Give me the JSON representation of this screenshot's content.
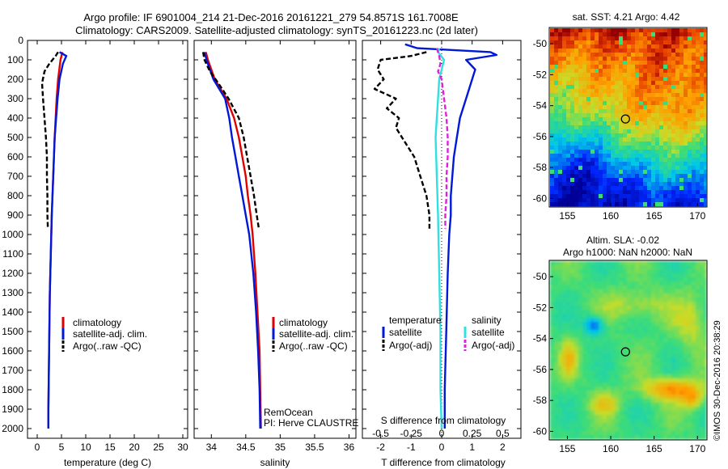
{
  "header": {
    "line1": "Argo profile: IF 6901004_214 21-Dec-2016 20161221_279 54.8571S 161.7008E",
    "line2": "Climatology: CARS2009. Satellite-adjusted climatology: synTS_20161223.nc (2d later)"
  },
  "colors": {
    "climatology": "#e00000",
    "satellite": "#0018d8",
    "argo": "#000000",
    "sal_satellite": "#30e0e0",
    "sal_argo": "#e020e0"
  },
  "credit": "©IMOS 30-Dec-2016 20:38:29",
  "chart_data": [
    {
      "id": "temperature",
      "type": "line",
      "xlabel": "temperature (deg C)",
      "xlim": [
        -2,
        31
      ],
      "ylim": [
        0,
        2050
      ],
      "x_ticks": [
        "0",
        "5",
        "10",
        "15",
        "20",
        "25",
        "30"
      ],
      "x_tick_values": [
        0,
        5,
        10,
        15,
        20,
        25,
        30
      ],
      "y_ticks": [
        "0",
        "100",
        "200",
        "300",
        "400",
        "500",
        "600",
        "700",
        "800",
        "900",
        "1000",
        "1100",
        "1200",
        "1300",
        "1400",
        "1500",
        "1600",
        "1700",
        "1800",
        "1900",
        "2000"
      ],
      "y_tick_values": [
        0,
        100,
        200,
        300,
        400,
        500,
        600,
        700,
        800,
        900,
        1000,
        1100,
        1200,
        1300,
        1400,
        1500,
        1600,
        1700,
        1800,
        1900,
        2000
      ],
      "legend": [
        "climatology",
        "satellite-adj. clim.",
        "Argo(..raw -QC)"
      ],
      "series": [
        {
          "name": "climatology",
          "style": "solid",
          "depth": [
            60,
            100,
            200,
            300,
            400,
            500,
            700,
            900,
            1100,
            1300,
            1500,
            1700,
            1900,
            2000
          ],
          "values": [
            5.2,
            4.8,
            4.3,
            4.0,
            3.8,
            3.6,
            3.3,
            3.0,
            2.8,
            2.6,
            2.5,
            2.4,
            2.3,
            2.3
          ]
        },
        {
          "name": "satellite-adj. clim.",
          "style": "solid",
          "depth": [
            60,
            80,
            120,
            200,
            300,
            400,
            500,
            700,
            900,
            1100,
            1300,
            1500,
            1700,
            1900,
            2000
          ],
          "values": [
            4.6,
            6.0,
            5.3,
            4.6,
            4.2,
            3.9,
            3.6,
            3.3,
            3.0,
            2.8,
            2.6,
            2.5,
            2.4,
            2.3,
            2.3
          ]
        },
        {
          "name": "Argo(..raw -QC)",
          "style": "dashed",
          "depth": [
            60,
            80,
            120,
            160,
            220,
            300,
            400,
            500,
            600,
            700,
            800,
            900,
            970
          ],
          "values": [
            4.3,
            3.8,
            2.5,
            1.5,
            1.0,
            1.2,
            1.5,
            1.8,
            2.0,
            2.0,
            2.1,
            2.1,
            2.2
          ]
        }
      ]
    },
    {
      "id": "salinity",
      "type": "line",
      "xlabel": "salinity",
      "xlim": [
        33.75,
        36.1
      ],
      "ylim": [
        0,
        2050
      ],
      "x_ticks": [
        "34",
        "34.5",
        "35",
        "35.5",
        "36"
      ],
      "x_tick_values": [
        34,
        34.5,
        35,
        35.5,
        36
      ],
      "legend": [
        "climatology",
        "satellite-adj. clim.",
        "Argo(..raw -QC)"
      ],
      "annotation": [
        "RemOcean",
        "PI: Herve CLAUSTRE"
      ],
      "series": [
        {
          "name": "climatology",
          "style": "solid",
          "depth": [
            60,
            100,
            200,
            300,
            400,
            500,
            600,
            700,
            800,
            900,
            1000,
            1200,
            1400,
            1600,
            1800,
            2000
          ],
          "values": [
            33.92,
            33.95,
            34.05,
            34.22,
            34.33,
            34.4,
            34.45,
            34.5,
            34.53,
            34.57,
            34.6,
            34.64,
            34.67,
            34.7,
            34.71,
            34.72
          ]
        },
        {
          "name": "satellite-adj. clim.",
          "style": "solid",
          "depth": [
            60,
            100,
            200,
            300,
            400,
            500,
            600,
            700,
            800,
            900,
            1000,
            1200,
            1400,
            1600,
            1800,
            2000
          ],
          "values": [
            33.9,
            33.93,
            34.03,
            34.2,
            34.26,
            34.3,
            34.35,
            34.4,
            34.45,
            34.5,
            34.55,
            34.61,
            34.65,
            34.68,
            34.7,
            34.71
          ]
        },
        {
          "name": "Argo(..raw -QC)",
          "style": "dashed",
          "depth": [
            60,
            100,
            160,
            220,
            300,
            400,
            500,
            600,
            700,
            800,
            900,
            970
          ],
          "values": [
            33.88,
            33.9,
            33.98,
            34.1,
            34.25,
            34.4,
            34.47,
            34.52,
            34.57,
            34.62,
            34.66,
            34.69
          ]
        }
      ]
    },
    {
      "id": "difference",
      "type": "line",
      "xlabel": "T difference from climatology",
      "xlabel_top": "S difference from climatology",
      "xlim": [
        -2.6,
        2.6
      ],
      "ylim": [
        0,
        2050
      ],
      "x_ticks": [
        "-2",
        "-1",
        "0",
        "1",
        "2"
      ],
      "x_tick_values": [
        -2,
        -1,
        0,
        1,
        2
      ],
      "s_ticks": [
        "-0.5",
        "-0.25",
        "0",
        "0.25",
        "0.5"
      ],
      "s_tick_values": [
        -0.5,
        -0.25,
        0,
        0.25,
        0.5
      ],
      "s_scale": 4,
      "legend_headers": [
        "temperature",
        "salinity"
      ],
      "legend": [
        {
          "label": "satellite",
          "group": "temperature"
        },
        {
          "label": "Argo(-adj)",
          "group": "temperature"
        },
        {
          "label": "satellite",
          "group": "salinity"
        },
        {
          "label": "Argo(-adj)",
          "group": "salinity"
        }
      ],
      "series": [
        {
          "name": "T satellite",
          "style": "solid",
          "unit": "T",
          "depth": [
            20,
            40,
            55,
            60,
            75,
            100,
            150,
            200,
            300,
            400,
            500,
            600,
            700,
            800,
            900,
            1000,
            1200,
            1500,
            1800,
            2000
          ],
          "values": [
            -1.2,
            -0.8,
            1.0,
            1.6,
            1.8,
            0.8,
            1.1,
            1.0,
            0.8,
            0.6,
            0.5,
            0.4,
            0.35,
            0.3,
            0.3,
            0.25,
            0.2,
            0.15,
            0.1,
            0.1
          ]
        },
        {
          "name": "T Argo(-adj)",
          "style": "dashed",
          "unit": "T",
          "depth": [
            60,
            80,
            100,
            150,
            200,
            250,
            300,
            350,
            400,
            450,
            500,
            600,
            700,
            800,
            900,
            970
          ],
          "values": [
            -0.5,
            -1.0,
            -2.0,
            -2.1,
            -1.9,
            -2.2,
            -1.5,
            -1.8,
            -1.4,
            -1.5,
            -1.3,
            -0.9,
            -0.7,
            -0.5,
            -0.4,
            -0.4
          ]
        },
        {
          "name": "S satellite",
          "style": "solid",
          "unit": "S",
          "depth": [
            40,
            60,
            100,
            200,
            300,
            400,
            500,
            700,
            900,
            1200,
            1500,
            1800,
            2000
          ],
          "values": [
            -0.02,
            -0.03,
            0.02,
            -0.02,
            -0.03,
            -0.04,
            -0.05,
            -0.04,
            -0.03,
            -0.02,
            -0.01,
            -0.01,
            0.0
          ]
        },
        {
          "name": "S Argo(-adj)",
          "style": "dashed",
          "unit": "S",
          "depth": [
            40,
            80,
            120,
            160,
            200,
            300,
            400,
            500,
            600,
            700,
            800,
            900,
            970
          ],
          "values": [
            -0.04,
            -0.02,
            -0.01,
            -0.03,
            0.0,
            0.02,
            0.04,
            0.05,
            0.05,
            0.04,
            0.04,
            0.03,
            0.03
          ]
        }
      ]
    },
    {
      "id": "sst-map",
      "type": "heatmap",
      "title": "sat. SST: 4.21 Argo: 4.42",
      "xlim": [
        153,
        171
      ],
      "ylim": [
        -60.5,
        -49
      ],
      "x_ticks": [
        "155",
        "160",
        "165",
        "170"
      ],
      "x_tick_values": [
        155,
        160,
        165,
        170
      ],
      "y_ticks": [
        "-50",
        "-52",
        "-54",
        "-56",
        "-58",
        "-60"
      ],
      "y_tick_values": [
        -50,
        -52,
        -54,
        -56,
        -58,
        -60
      ],
      "argo_position": [
        161.7,
        -54.86
      ]
    },
    {
      "id": "sla-map",
      "type": "heatmap",
      "title": [
        "Altim. SLA: -0.02",
        "Argo h1000: NaN h2000: NaN"
      ],
      "xlim": [
        153,
        171
      ],
      "ylim": [
        -60.5,
        -49
      ],
      "x_ticks": [
        "155",
        "160",
        "165",
        "170"
      ],
      "x_tick_values": [
        155,
        160,
        165,
        170
      ],
      "y_ticks": [
        "-50",
        "-52",
        "-54",
        "-56",
        "-58",
        "-60"
      ],
      "y_tick_values": [
        -50,
        -52,
        -54,
        -56,
        -58,
        -60
      ],
      "argo_position": [
        161.7,
        -54.86
      ]
    }
  ]
}
